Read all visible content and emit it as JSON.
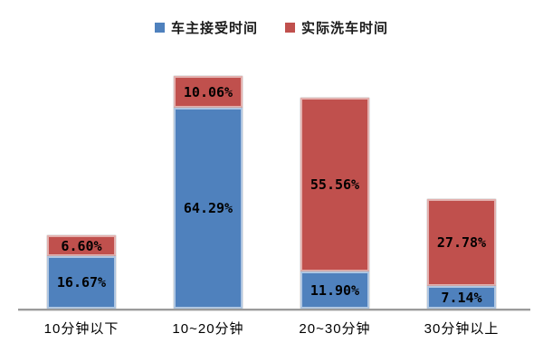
{
  "chart_data": {
    "type": "bar",
    "stacked": true,
    "title": "",
    "xlabel": "",
    "ylabel": "",
    "value_suffix": "%",
    "grid": false,
    "legend_position": "top",
    "background_color": "#ffffff",
    "axis_line_color": "#9b9b9b",
    "categories": [
      "10分钟以下",
      "10~20分钟",
      "20~30分钟",
      "30分钟以上"
    ],
    "series": [
      {
        "name": "车主接受时间",
        "color": "#4F81BD",
        "values": [
          16.67,
          64.29,
          11.9,
          7.14
        ],
        "labels": [
          "16.67%",
          "64.29%",
          "11.90%",
          "7.14%"
        ]
      },
      {
        "name": "实际洗车时间",
        "color": "#C0504D",
        "values": [
          6.6,
          10.06,
          55.56,
          27.78
        ],
        "labels": [
          "6.60%",
          "10.06%",
          "55.56%",
          "27.78%"
        ]
      }
    ],
    "ylim": [
      0,
      80
    ]
  }
}
